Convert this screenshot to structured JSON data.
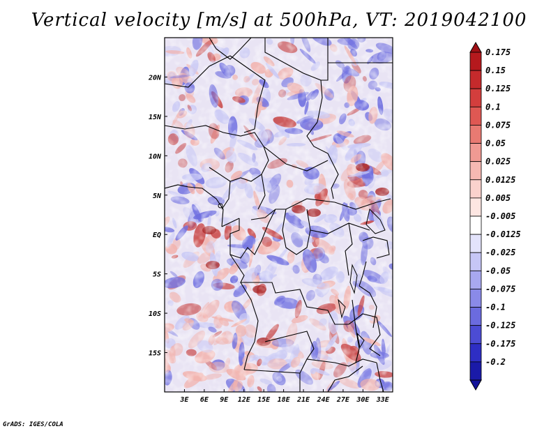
{
  "title": "Vertical velocity [m/s] at 500hPa, VT: 2019042100",
  "credit": "GrADS: IGES/COLA",
  "map": {
    "lon_range": [
      0,
      34.5
    ],
    "lat_range": [
      -20,
      25
    ],
    "lon_ticks": [
      {
        "value": 3,
        "label": "3E"
      },
      {
        "value": 6,
        "label": "6E"
      },
      {
        "value": 9,
        "label": "9E"
      },
      {
        "value": 12,
        "label": "12E"
      },
      {
        "value": 15,
        "label": "15E"
      },
      {
        "value": 18,
        "label": "18E"
      },
      {
        "value": 21,
        "label": "21E"
      },
      {
        "value": 24,
        "label": "24E"
      },
      {
        "value": 27,
        "label": "27E"
      },
      {
        "value": 30,
        "label": "30E"
      },
      {
        "value": 33,
        "label": "33E"
      }
    ],
    "lat_ticks": [
      {
        "value": 20,
        "label": "20N"
      },
      {
        "value": 15,
        "label": "15N"
      },
      {
        "value": 10,
        "label": "10N"
      },
      {
        "value": 5,
        "label": "5N"
      },
      {
        "value": 0,
        "label": "EQ"
      },
      {
        "value": -5,
        "label": "5S"
      },
      {
        "value": -10,
        "label": "10S"
      },
      {
        "value": -15,
        "label": "15S"
      }
    ]
  },
  "colorbar": {
    "levels": [
      {
        "label": "0.175",
        "color": "#b5191d"
      },
      {
        "label": "0.15",
        "color": "#c52a2c"
      },
      {
        "label": "0.125",
        "color": "#d33e3d"
      },
      {
        "label": "0.1",
        "color": "#df5853"
      },
      {
        "label": "0.075",
        "color": "#e87a72"
      },
      {
        "label": "0.05",
        "color": "#f09a93"
      },
      {
        "label": "0.025",
        "color": "#f6b9b3"
      },
      {
        "label": "0.0125",
        "color": "#fad2cd"
      },
      {
        "label": "0.005",
        "color": "#fde6e2"
      },
      {
        "label": "-0.005",
        "color": "#ffffff"
      },
      {
        "label": "-0.0125",
        "color": "#e3e3fb"
      },
      {
        "label": "-0.025",
        "color": "#c6c6f6"
      },
      {
        "label": "-0.05",
        "color": "#a8a8f0"
      },
      {
        "label": "-0.075",
        "color": "#8a8ae8"
      },
      {
        "label": "-0.1",
        "color": "#6b6bdf"
      },
      {
        "label": "-0.125",
        "color": "#4c4cd4"
      },
      {
        "label": "-0.175",
        "color": "#2e2ec4"
      },
      {
        "label": "-0.2",
        "color": "#1a1aa8"
      }
    ],
    "top_color": "#a01015",
    "bottom_color": "#14149a"
  },
  "colors": {
    "up_strong": "#c94a4a",
    "up_light": "#f2b3ad",
    "down_strong": "#6f6fe0",
    "down_light": "#c9c9f5",
    "border": "#000000"
  }
}
